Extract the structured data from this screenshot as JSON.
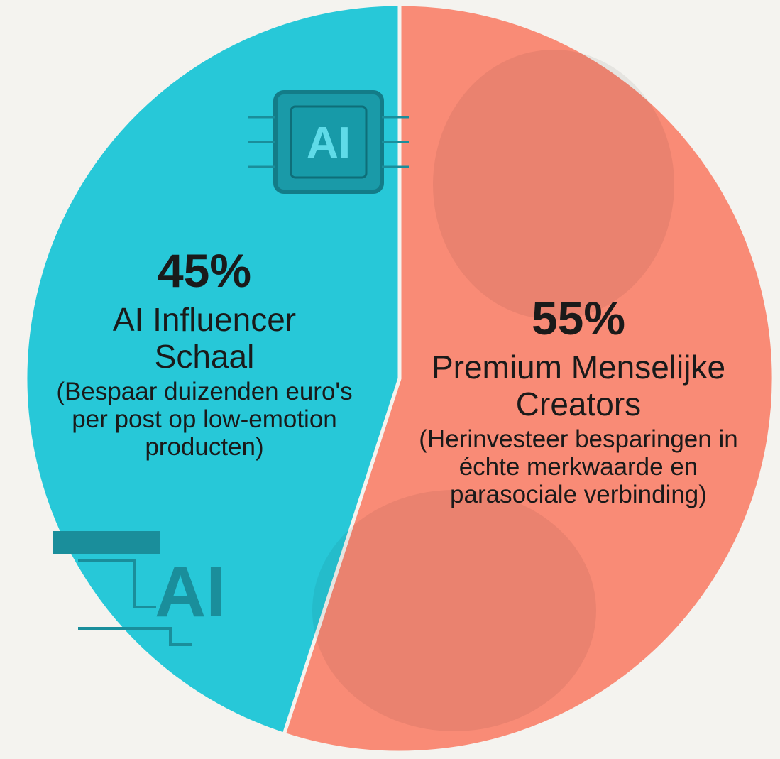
{
  "chart_data": {
    "type": "pie",
    "categories": [
      "Premium Menselijke Creators",
      "AI Influencer Schaal"
    ],
    "descriptions": [
      "(Herinvesteer besparingen in échte merkwaarde en parasociale verbinding)",
      "(Bespaar duizenden euro's per post op low-emotion producten)"
    ],
    "values": [
      55,
      45
    ],
    "value_labels": [
      "55%",
      "45%"
    ],
    "colors": [
      "#f98b76",
      "#27c8d8"
    ],
    "annotations": [
      "AI",
      "AI"
    ]
  }
}
